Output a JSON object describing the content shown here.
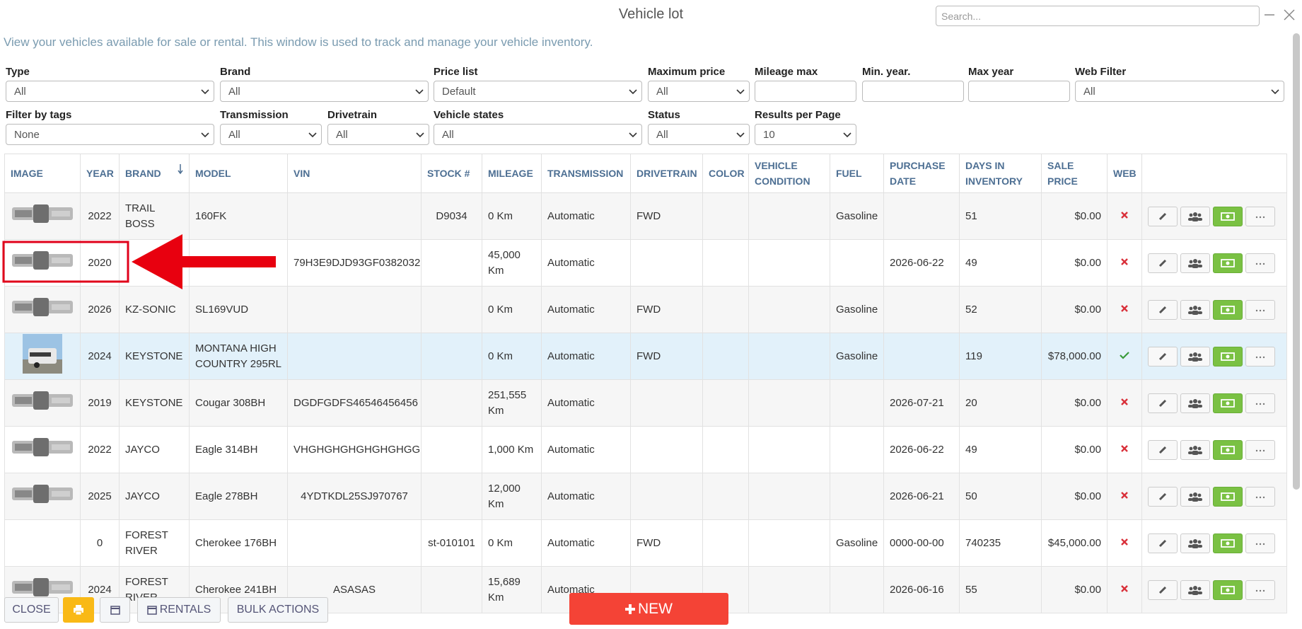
{
  "header": {
    "title": "Vehicle lot",
    "search_placeholder": "Search...",
    "description": "View your vehicles available for sale or rental. This window is used to track and manage your vehicle inventory."
  },
  "filters": [
    {
      "label": "Type",
      "value": "All"
    },
    {
      "label": "Brand",
      "value": "All"
    },
    {
      "label": "Price list",
      "value": "Default"
    },
    {
      "label": "Maximum price",
      "value": "All"
    },
    {
      "label": "Mileage max"
    },
    {
      "label": "Min. year."
    },
    {
      "label": "Max year"
    },
    {
      "label": "Web Filter",
      "value": "All"
    },
    {
      "label": "Filter by tags",
      "value": "None"
    },
    {
      "label": "Transmission",
      "value": "All"
    },
    {
      "label": "Drivetrain",
      "value": "All"
    },
    {
      "label": "Vehicle states",
      "value": "All"
    },
    {
      "label": "Status",
      "value": "All"
    },
    {
      "label": "Results per Page",
      "value": "10"
    }
  ],
  "table": {
    "columns": [
      "IMAGE",
      "YEAR",
      "BRAND",
      "MODEL",
      "VIN",
      "STOCK #",
      "MILEAGE",
      "TRANSMISSION",
      "DRIVETRAIN",
      "COLOR",
      "VEHICLE CONDITION",
      "FUEL",
      "PURCHASE DATE",
      "DAYS IN INVENTORY",
      "SALE PRICE",
      "WEB"
    ],
    "rows": [
      {
        "image": "logo",
        "year": 2022,
        "brand": "TRAIL BOSS",
        "model": "160FK",
        "vin": null,
        "stock": "D9034",
        "mileage": "0 Km",
        "transmission": "Automatic",
        "drivetrain": "FWD",
        "color": null,
        "condition": null,
        "fuel": "Gasoline",
        "purchase_date": null,
        "days": 51,
        "price": "$0.00",
        "web": false
      },
      {
        "image": "logo",
        "year": 2020,
        "brand": null,
        "model": null,
        "vin": "79H3E9DJD93GF0382032",
        "stock": null,
        "mileage": "45,000 Km",
        "transmission": "Automatic",
        "drivetrain": null,
        "color": null,
        "condition": null,
        "fuel": null,
        "purchase_date": "2026-06-22",
        "days": 49,
        "price": "$0.00",
        "web": false
      },
      {
        "image": "logo",
        "year": 2026,
        "brand": "KZ-SONIC",
        "model": "SL169VUD",
        "vin": null,
        "stock": null,
        "mileage": "0 Km",
        "transmission": "Automatic",
        "drivetrain": "FWD",
        "color": null,
        "condition": null,
        "fuel": "Gasoline",
        "purchase_date": null,
        "days": 52,
        "price": "$0.00",
        "web": false
      },
      {
        "image": "photo",
        "year": 2024,
        "brand": "KEYSTONE",
        "model": "MONTANA HIGH COUNTRY 295RL",
        "vin": null,
        "stock": null,
        "mileage": "0 Km",
        "transmission": "Automatic",
        "drivetrain": "FWD",
        "color": null,
        "condition": null,
        "fuel": "Gasoline",
        "purchase_date": null,
        "days": 119,
        "price": "$78,000.00",
        "web": true
      },
      {
        "image": "logo",
        "year": 2019,
        "brand": "KEYSTONE",
        "model": "Cougar 308BH",
        "vin": "DGDFGDFS46546456456",
        "stock": null,
        "mileage": "251,555 Km",
        "transmission": "Automatic",
        "drivetrain": null,
        "color": null,
        "condition": null,
        "fuel": null,
        "purchase_date": "2026-07-21",
        "days": 20,
        "price": "$0.00",
        "web": false
      },
      {
        "image": "logo",
        "year": 2022,
        "brand": "JAYCO",
        "model": "Eagle 314BH",
        "vin": "VHGHGHGHGHGHGHGG",
        "stock": null,
        "mileage": "1,000 Km",
        "transmission": "Automatic",
        "drivetrain": null,
        "color": null,
        "condition": null,
        "fuel": null,
        "purchase_date": "2026-06-22",
        "days": 49,
        "price": "$0.00",
        "web": false
      },
      {
        "image": "logo",
        "year": 2025,
        "brand": "JAYCO",
        "model": "Eagle 278BH",
        "vin": "4YDTKDL25SJ970767",
        "stock": null,
        "mileage": "12,000 Km",
        "transmission": "Automatic",
        "drivetrain": null,
        "color": null,
        "condition": null,
        "fuel": null,
        "purchase_date": "2026-06-21",
        "days": 50,
        "price": "$0.00",
        "web": false
      },
      {
        "image": null,
        "year": 0,
        "brand": "FOREST RIVER",
        "model": "Cherokee 176BH",
        "vin": null,
        "stock": "st-010101",
        "mileage": "0 Km",
        "transmission": "Automatic",
        "drivetrain": "FWD",
        "color": null,
        "condition": null,
        "fuel": "Gasoline",
        "purchase_date": "0000-00-00",
        "days": 740235,
        "price": "$45,000.00",
        "web": false
      },
      {
        "image": "logo",
        "year": 2024,
        "brand": "FOREST RIVER",
        "model": "Cherokee 241BH",
        "vin": "ASASAS",
        "stock": null,
        "mileage": "15,689 Km",
        "transmission": "Automatic",
        "drivetrain": null,
        "color": null,
        "condition": null,
        "fuel": null,
        "purchase_date": "2026-06-16",
        "days": 55,
        "price": "$0.00",
        "web": false
      }
    ]
  },
  "footer": {
    "close": "CLOSE",
    "rentals": "RENTALS",
    "bulk_actions": "BULK ACTIONS",
    "new": "NEW"
  }
}
